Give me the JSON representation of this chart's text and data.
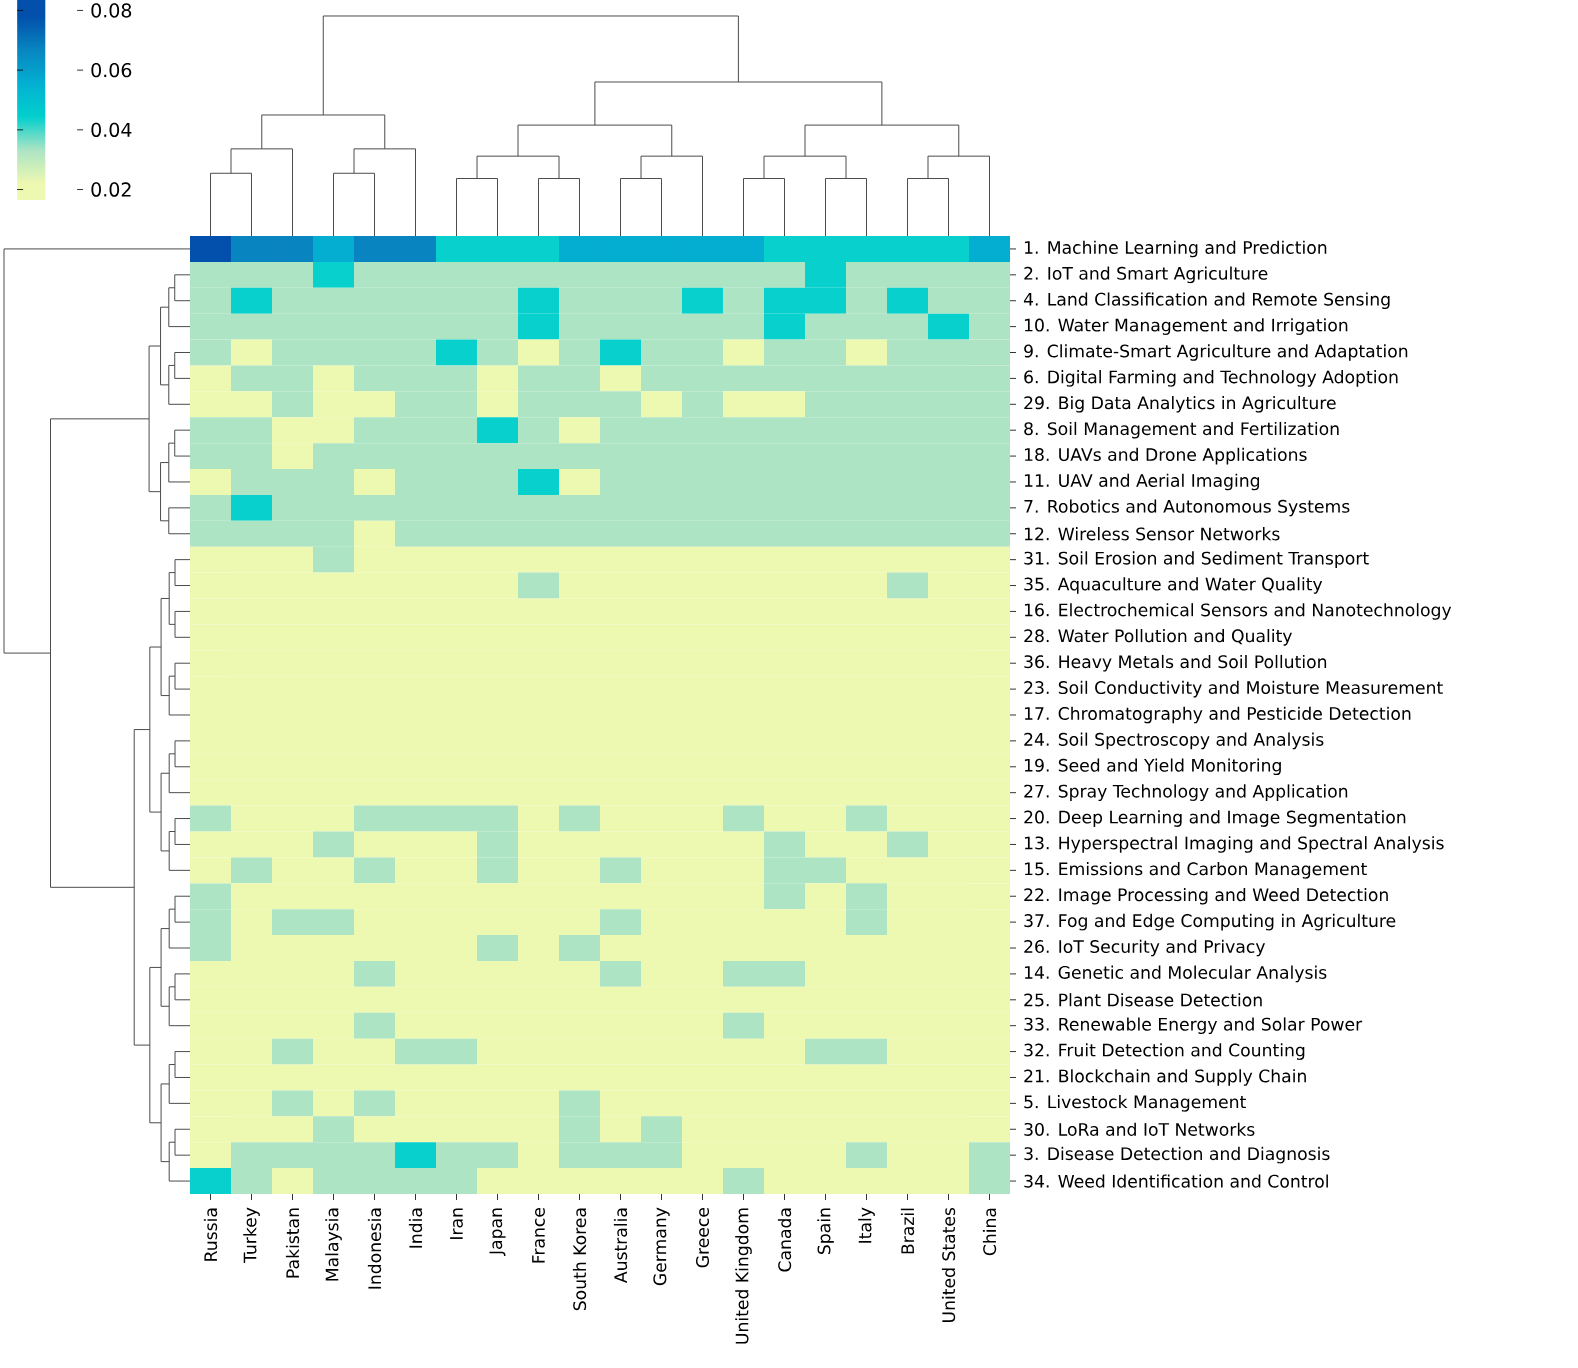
{
  "chart_data": {
    "type": "heatmap",
    "categories": [
      "Russia",
      "Turkey",
      "Pakistan",
      "Malaysia",
      "Indonesia",
      "India",
      "Iran",
      "Japan",
      "France",
      "South Korea",
      "Australia",
      "Germany",
      "Greece",
      "United Kingdom",
      "Canada",
      "Spain",
      "Italy",
      "Brazil",
      "United States",
      "China"
    ],
    "y_categories": [
      "1. Machine Learning and Prediction",
      "2. IoT and Smart Agriculture",
      "4. Land Classification and Remote Sensing",
      "10. Water Management and Irrigation",
      "9. Climate-Smart Agriculture and Adaptation",
      "6. Digital Farming and Technology Adoption",
      "29. Big Data Analytics in Agriculture",
      "8. Soil Management and Fertilization",
      "18. UAVs and Drone Applications",
      "11. UAV and Aerial Imaging",
      "7. Robotics and Autonomous Systems",
      "12. Wireless Sensor Networks",
      "31. Soil Erosion and Sediment Transport",
      "35. Aquaculture and Water Quality",
      "16. Electrochemical Sensors and Nanotechnology",
      "28. Water Pollution and Quality",
      "36. Heavy Metals and Soil Pollution",
      "23. Soil Conductivity and Moisture Measurement",
      "17. Chromatography and Pesticide Detection",
      "24. Soil Spectroscopy and Analysis",
      "19. Seed and Yield Monitoring",
      "27. Spray Technology and Application",
      "20. Deep Learning and Image Segmentation",
      "13. Hyperspectral Imaging and Spectral Analysis",
      "15. Emissions and Carbon Management",
      "22. Image Processing and Weed Detection",
      "37. Fog and Edge Computing in Agriculture",
      "26. IoT Security and Privacy",
      "14. Genetic and Molecular Analysis",
      "25. Plant Disease Detection",
      "33. Renewable Energy and Solar Power",
      "32. Fruit Detection and Counting",
      "21. Blockchain and Supply Chain",
      "5. Livestock Management",
      "30. LoRa and IoT Networks",
      "3. Disease Detection and Diagnosis",
      "34. Weed Identification and Control"
    ],
    "cells": [
      [
        0.078,
        0.067,
        0.067,
        0.056,
        0.067,
        0.067,
        0.044,
        0.044,
        0.044,
        0.056,
        0.056,
        0.056,
        0.056,
        0.056,
        0.044,
        0.044,
        0.044,
        0.044,
        0.044,
        0.056
      ],
      [
        0.033,
        0.033,
        0.033,
        0.044,
        0.033,
        0.033,
        0.033,
        0.033,
        0.033,
        0.033,
        0.033,
        0.033,
        0.033,
        0.033,
        0.033,
        0.044,
        0.033,
        0.033,
        0.033,
        0.033
      ],
      [
        0.033,
        0.044,
        0.033,
        0.033,
        0.033,
        0.033,
        0.033,
        0.033,
        0.044,
        0.033,
        0.033,
        0.033,
        0.044,
        0.033,
        0.044,
        0.044,
        0.033,
        0.044,
        0.033,
        0.033
      ],
      [
        0.033,
        0.033,
        0.033,
        0.033,
        0.033,
        0.033,
        0.033,
        0.033,
        0.044,
        0.033,
        0.033,
        0.033,
        0.033,
        0.033,
        0.044,
        0.033,
        0.033,
        0.033,
        0.044,
        0.033
      ],
      [
        0.033,
        0.022,
        0.033,
        0.033,
        0.033,
        0.033,
        0.044,
        0.033,
        0.022,
        0.033,
        0.044,
        0.033,
        0.033,
        0.022,
        0.033,
        0.033,
        0.022,
        0.033,
        0.033,
        0.033
      ],
      [
        0.022,
        0.033,
        0.033,
        0.022,
        0.033,
        0.033,
        0.033,
        0.022,
        0.033,
        0.033,
        0.022,
        0.033,
        0.033,
        0.033,
        0.033,
        0.033,
        0.033,
        0.033,
        0.033,
        0.033
      ],
      [
        0.022,
        0.022,
        0.033,
        0.022,
        0.022,
        0.033,
        0.033,
        0.022,
        0.033,
        0.033,
        0.033,
        0.022,
        0.033,
        0.022,
        0.022,
        0.033,
        0.033,
        0.033,
        0.033,
        0.033
      ],
      [
        0.033,
        0.033,
        0.022,
        0.022,
        0.033,
        0.033,
        0.033,
        0.044,
        0.033,
        0.022,
        0.033,
        0.033,
        0.033,
        0.033,
        0.033,
        0.033,
        0.033,
        0.033,
        0.033,
        0.033
      ],
      [
        0.033,
        0.033,
        0.022,
        0.033,
        0.033,
        0.033,
        0.033,
        0.033,
        0.033,
        0.033,
        0.033,
        0.033,
        0.033,
        0.033,
        0.033,
        0.033,
        0.033,
        0.033,
        0.033,
        0.033
      ],
      [
        0.022,
        0.033,
        0.033,
        0.033,
        0.022,
        0.033,
        0.033,
        0.033,
        0.044,
        0.022,
        0.033,
        0.033,
        0.033,
        0.033,
        0.033,
        0.033,
        0.033,
        0.033,
        0.033,
        0.033
      ],
      [
        0.033,
        0.044,
        0.033,
        0.033,
        0.033,
        0.033,
        0.033,
        0.033,
        0.033,
        0.033,
        0.033,
        0.033,
        0.033,
        0.033,
        0.033,
        0.033,
        0.033,
        0.033,
        0.033,
        0.033
      ],
      [
        0.033,
        0.033,
        0.033,
        0.033,
        0.022,
        0.033,
        0.033,
        0.033,
        0.033,
        0.033,
        0.033,
        0.033,
        0.033,
        0.033,
        0.033,
        0.033,
        0.033,
        0.033,
        0.033,
        0.033
      ],
      [
        0.022,
        0.022,
        0.022,
        0.033,
        0.022,
        0.022,
        0.022,
        0.022,
        0.022,
        0.022,
        0.022,
        0.022,
        0.022,
        0.022,
        0.022,
        0.022,
        0.022,
        0.022,
        0.022,
        0.022
      ],
      [
        0.022,
        0.022,
        0.022,
        0.022,
        0.022,
        0.022,
        0.022,
        0.022,
        0.033,
        0.022,
        0.022,
        0.022,
        0.022,
        0.022,
        0.022,
        0.022,
        0.022,
        0.033,
        0.022,
        0.022
      ],
      [
        0.022,
        0.022,
        0.022,
        0.022,
        0.022,
        0.022,
        0.022,
        0.022,
        0.022,
        0.022,
        0.022,
        0.022,
        0.022,
        0.022,
        0.022,
        0.022,
        0.022,
        0.022,
        0.022,
        0.022
      ],
      [
        0.022,
        0.022,
        0.022,
        0.022,
        0.022,
        0.022,
        0.022,
        0.022,
        0.022,
        0.022,
        0.022,
        0.022,
        0.022,
        0.022,
        0.022,
        0.022,
        0.022,
        0.022,
        0.022,
        0.022
      ],
      [
        0.022,
        0.022,
        0.022,
        0.022,
        0.022,
        0.022,
        0.022,
        0.022,
        0.022,
        0.022,
        0.022,
        0.022,
        0.022,
        0.022,
        0.022,
        0.022,
        0.022,
        0.022,
        0.022,
        0.022
      ],
      [
        0.022,
        0.022,
        0.022,
        0.022,
        0.022,
        0.022,
        0.022,
        0.022,
        0.022,
        0.022,
        0.022,
        0.022,
        0.022,
        0.022,
        0.022,
        0.022,
        0.022,
        0.022,
        0.022,
        0.022
      ],
      [
        0.022,
        0.022,
        0.022,
        0.022,
        0.022,
        0.022,
        0.022,
        0.022,
        0.022,
        0.022,
        0.022,
        0.022,
        0.022,
        0.022,
        0.022,
        0.022,
        0.022,
        0.022,
        0.022,
        0.022
      ],
      [
        0.022,
        0.022,
        0.022,
        0.022,
        0.022,
        0.022,
        0.022,
        0.022,
        0.022,
        0.022,
        0.022,
        0.022,
        0.022,
        0.022,
        0.022,
        0.022,
        0.022,
        0.022,
        0.022,
        0.022
      ],
      [
        0.022,
        0.022,
        0.022,
        0.022,
        0.022,
        0.022,
        0.022,
        0.022,
        0.022,
        0.022,
        0.022,
        0.022,
        0.022,
        0.022,
        0.022,
        0.022,
        0.022,
        0.022,
        0.022,
        0.022
      ],
      [
        0.022,
        0.022,
        0.022,
        0.022,
        0.022,
        0.022,
        0.022,
        0.022,
        0.022,
        0.022,
        0.022,
        0.022,
        0.022,
        0.022,
        0.022,
        0.022,
        0.022,
        0.022,
        0.022,
        0.022
      ],
      [
        0.033,
        0.022,
        0.022,
        0.022,
        0.033,
        0.033,
        0.033,
        0.033,
        0.022,
        0.033,
        0.022,
        0.022,
        0.022,
        0.033,
        0.022,
        0.022,
        0.033,
        0.022,
        0.022,
        0.022
      ],
      [
        0.022,
        0.022,
        0.022,
        0.033,
        0.022,
        0.022,
        0.022,
        0.033,
        0.022,
        0.022,
        0.022,
        0.022,
        0.022,
        0.022,
        0.033,
        0.022,
        0.022,
        0.033,
        0.022,
        0.022
      ],
      [
        0.022,
        0.033,
        0.022,
        0.022,
        0.033,
        0.022,
        0.022,
        0.033,
        0.022,
        0.022,
        0.033,
        0.022,
        0.022,
        0.022,
        0.033,
        0.033,
        0.022,
        0.022,
        0.022,
        0.022
      ],
      [
        0.033,
        0.022,
        0.022,
        0.022,
        0.022,
        0.022,
        0.022,
        0.022,
        0.022,
        0.022,
        0.022,
        0.022,
        0.022,
        0.022,
        0.033,
        0.022,
        0.033,
        0.022,
        0.022,
        0.022
      ],
      [
        0.033,
        0.022,
        0.033,
        0.033,
        0.022,
        0.022,
        0.022,
        0.022,
        0.022,
        0.022,
        0.033,
        0.022,
        0.022,
        0.022,
        0.022,
        0.022,
        0.033,
        0.022,
        0.022,
        0.022
      ],
      [
        0.033,
        0.022,
        0.022,
        0.022,
        0.022,
        0.022,
        0.022,
        0.033,
        0.022,
        0.033,
        0.022,
        0.022,
        0.022,
        0.022,
        0.022,
        0.022,
        0.022,
        0.022,
        0.022,
        0.022
      ],
      [
        0.022,
        0.022,
        0.022,
        0.022,
        0.033,
        0.022,
        0.022,
        0.022,
        0.022,
        0.022,
        0.033,
        0.022,
        0.022,
        0.033,
        0.033,
        0.022,
        0.022,
        0.022,
        0.022,
        0.022
      ],
      [
        0.022,
        0.022,
        0.022,
        0.022,
        0.022,
        0.022,
        0.022,
        0.022,
        0.022,
        0.022,
        0.022,
        0.022,
        0.022,
        0.022,
        0.022,
        0.022,
        0.022,
        0.022,
        0.022,
        0.022
      ],
      [
        0.022,
        0.022,
        0.022,
        0.022,
        0.033,
        0.022,
        0.022,
        0.022,
        0.022,
        0.022,
        0.022,
        0.022,
        0.022,
        0.033,
        0.022,
        0.022,
        0.022,
        0.022,
        0.022,
        0.022
      ],
      [
        0.022,
        0.022,
        0.033,
        0.022,
        0.022,
        0.033,
        0.033,
        0.022,
        0.022,
        0.022,
        0.022,
        0.022,
        0.022,
        0.022,
        0.022,
        0.033,
        0.033,
        0.022,
        0.022,
        0.022
      ],
      [
        0.022,
        0.022,
        0.022,
        0.022,
        0.022,
        0.022,
        0.022,
        0.022,
        0.022,
        0.022,
        0.022,
        0.022,
        0.022,
        0.022,
        0.022,
        0.022,
        0.022,
        0.022,
        0.022,
        0.022
      ],
      [
        0.022,
        0.022,
        0.033,
        0.022,
        0.033,
        0.022,
        0.022,
        0.022,
        0.022,
        0.033,
        0.022,
        0.022,
        0.022,
        0.022,
        0.022,
        0.022,
        0.022,
        0.022,
        0.022,
        0.022
      ],
      [
        0.022,
        0.022,
        0.022,
        0.033,
        0.022,
        0.022,
        0.022,
        0.022,
        0.022,
        0.033,
        0.022,
        0.033,
        0.022,
        0.022,
        0.022,
        0.022,
        0.022,
        0.022,
        0.022,
        0.022
      ],
      [
        0.022,
        0.033,
        0.033,
        0.033,
        0.033,
        0.044,
        0.033,
        0.033,
        0.022,
        0.033,
        0.033,
        0.033,
        0.022,
        0.022,
        0.022,
        0.022,
        0.033,
        0.022,
        0.022,
        0.033
      ],
      [
        0.044,
        0.033,
        0.022,
        0.033,
        0.033,
        0.033,
        0.033,
        0.022,
        0.022,
        0.022,
        0.022,
        0.022,
        0.022,
        0.033,
        0.022,
        0.022,
        0.022,
        0.022,
        0.022,
        0.033
      ]
    ],
    "clim": [
      0.0165,
      0.0835
    ],
    "cticks": [
      0.02,
      0.04,
      0.06,
      0.08
    ]
  }
}
